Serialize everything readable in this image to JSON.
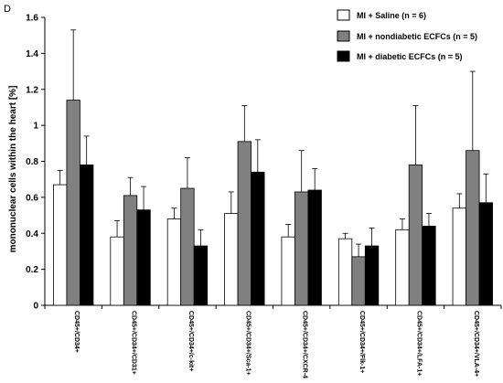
{
  "panel_label": "D",
  "chart_data": {
    "type": "bar",
    "title": "",
    "xlabel": "",
    "ylabel": "mononuclear cells within the heart [%]",
    "ylim": [
      0,
      1.6
    ],
    "yticks": [
      0,
      0.2,
      0.4,
      0.6,
      0.8,
      1,
      1.2,
      1.4,
      1.6
    ],
    "error_bars": "upper (SD)",
    "grid": false,
    "legend_position": "top-right",
    "categories": [
      "CD45+/CD34+",
      "CD45+/CD34+/CD31+",
      "CD45+/CD34+/c-kit+",
      "CD45+/CD34+/Sca-1+",
      "CD45+/CD34+/CXCR-4",
      "CD45+/CD34+/Flk-1+",
      "CD45+/CD34+/LFA-1+",
      "CD45+/CD34+/VLA-4+"
    ],
    "series": [
      {
        "name": "MI + Saline (n = 6)",
        "color": "#ffffff",
        "values": [
          0.67,
          0.38,
          0.48,
          0.51,
          0.38,
          0.37,
          0.42,
          0.54
        ],
        "errors": [
          0.08,
          0.09,
          0.06,
          0.12,
          0.07,
          0.03,
          0.06,
          0.08
        ]
      },
      {
        "name": "MI + nondiabetic ECFCs (n = 5)",
        "color": "#808080",
        "values": [
          1.14,
          0.61,
          0.65,
          0.91,
          0.63,
          0.27,
          0.78,
          0.86
        ],
        "errors": [
          0.39,
          0.1,
          0.17,
          0.2,
          0.23,
          0.07,
          0.33,
          0.44
        ]
      },
      {
        "name": "MI + diabetic ECFCs (n = 5)",
        "color": "#000000",
        "values": [
          0.78,
          0.53,
          0.33,
          0.74,
          0.64,
          0.33,
          0.44,
          0.57
        ],
        "errors": [
          0.16,
          0.13,
          0.09,
          0.18,
          0.12,
          0.1,
          0.07,
          0.16
        ]
      }
    ]
  }
}
